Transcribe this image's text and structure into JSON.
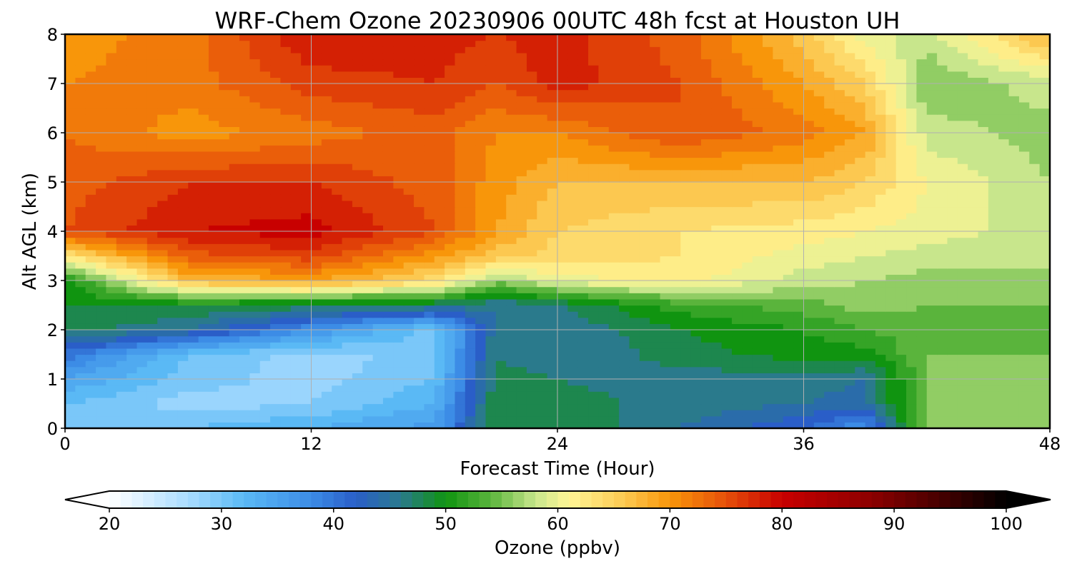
{
  "chart_data": {
    "type": "heatmap",
    "title": "WRF-Chem Ozone  20230906 00UTC 48h fcst at Houston UH",
    "xlabel": "Forecast Time (Hour)",
    "ylabel": "Alt AGL (km)",
    "xlim": [
      0,
      48
    ],
    "ylim": [
      0,
      8
    ],
    "x_ticks": [
      0,
      12,
      24,
      36,
      48
    ],
    "y_ticks": [
      0,
      1,
      2,
      3,
      4,
      5,
      6,
      7,
      8
    ],
    "grid": true,
    "x": [
      0,
      6,
      12,
      18,
      21,
      24,
      30,
      36,
      39,
      42,
      48
    ],
    "y": [
      0,
      0.5,
      1,
      1.5,
      2,
      2.5,
      3,
      3.5,
      4,
      5,
      6,
      7,
      8
    ],
    "z": [
      [
        29,
        31,
        33,
        36,
        49,
        49,
        45,
        41,
        37,
        56,
        57
      ],
      [
        31,
        28,
        29,
        33,
        49,
        48,
        46,
        45,
        44,
        56,
        57
      ],
      [
        35,
        30,
        28,
        31,
        48,
        47,
        46,
        46,
        45,
        55,
        56
      ],
      [
        40,
        31,
        28,
        30,
        47,
        45,
        48,
        50,
        50,
        55,
        55
      ],
      [
        48,
        45,
        37,
        30,
        46,
        45,
        49,
        51,
        53,
        54,
        55
      ],
      [
        49,
        49,
        48,
        47,
        45,
        47,
        52,
        54,
        56,
        55,
        55
      ],
      [
        50,
        67,
        69,
        64,
        56,
        60,
        62,
        58,
        57,
        56,
        56
      ],
      [
        63,
        74,
        76,
        70,
        66,
        64,
        63,
        60,
        59,
        58,
        58
      ],
      [
        75,
        79,
        80,
        75,
        69,
        65,
        63,
        62,
        61,
        60,
        58
      ],
      [
        74,
        77,
        77,
        74,
        70,
        67,
        67,
        67,
        65,
        61,
        57
      ],
      [
        73,
        70,
        72,
        74,
        71,
        71,
        75,
        72,
        69,
        58,
        56
      ],
      [
        71,
        72,
        76,
        77,
        75,
        78,
        75,
        69,
        65,
        55,
        58
      ],
      [
        70,
        72,
        79,
        78,
        77,
        78,
        74,
        66,
        60,
        58,
        68
      ]
    ],
    "colorbar": {
      "label": "Ozone  (ppbv)",
      "min": 20,
      "max": 100,
      "ticks": [
        20,
        30,
        40,
        50,
        60,
        70,
        80,
        90,
        100
      ],
      "extend": "both",
      "colormap": [
        [
          20,
          "#ffffff"
        ],
        [
          27,
          "#aadcff"
        ],
        [
          32,
          "#5ab9f5"
        ],
        [
          38,
          "#3c8ce6"
        ],
        [
          42,
          "#2a5ec8"
        ],
        [
          46,
          "#2a7a8c"
        ],
        [
          50,
          "#109410"
        ],
        [
          54,
          "#5ab43c"
        ],
        [
          58,
          "#c8e68c"
        ],
        [
          61,
          "#fff696"
        ],
        [
          66,
          "#fcc850"
        ],
        [
          70,
          "#f8960a"
        ],
        [
          75,
          "#e6500a"
        ],
        [
          80,
          "#c80000"
        ],
        [
          88,
          "#8c0000"
        ],
        [
          95,
          "#3c0000"
        ],
        [
          100,
          "#000000"
        ]
      ]
    }
  }
}
